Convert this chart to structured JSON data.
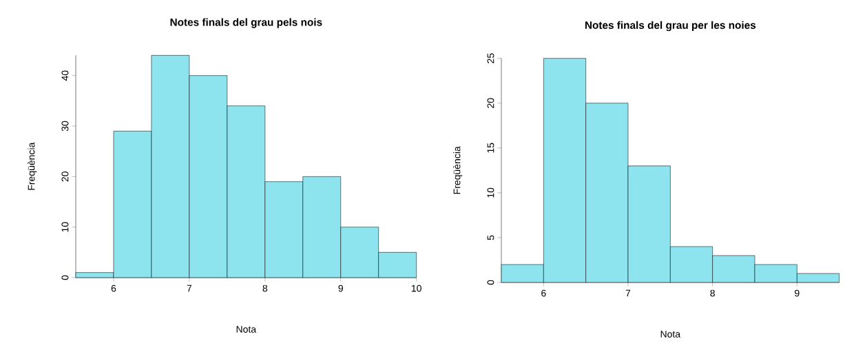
{
  "chart_data": [
    {
      "type": "histogram",
      "title": "Notes finals del grau pels nois",
      "xlabel": "Nota",
      "ylabel": "Freqüència",
      "bins": [
        5.5,
        6,
        6.5,
        7,
        7.5,
        8,
        8.5,
        9,
        9.5,
        10
      ],
      "values": [
        1,
        29,
        44,
        40,
        34,
        19,
        20,
        10,
        5
      ],
      "color": "#8ee4ee",
      "xlim": [
        5.5,
        10
      ],
      "ylim": [
        0,
        44
      ],
      "xticks": [
        6,
        7,
        8,
        9,
        10
      ],
      "yticks": [
        0,
        10,
        20,
        30,
        40
      ]
    },
    {
      "type": "histogram",
      "title": "Notes finals del grau per les noies",
      "xlabel": "Nota",
      "ylabel": "Freqüència",
      "bins": [
        5.5,
        6,
        6.5,
        7,
        7.5,
        8,
        8.5,
        9,
        9.5
      ],
      "values": [
        2,
        25,
        20,
        13,
        4,
        3,
        2,
        1
      ],
      "color": "#8ee4ee",
      "xlim": [
        5.5,
        9.5
      ],
      "ylim": [
        0,
        25
      ],
      "xticks": [
        6,
        7,
        8,
        9
      ],
      "yticks": [
        0,
        5,
        10,
        15,
        20,
        25
      ]
    }
  ]
}
